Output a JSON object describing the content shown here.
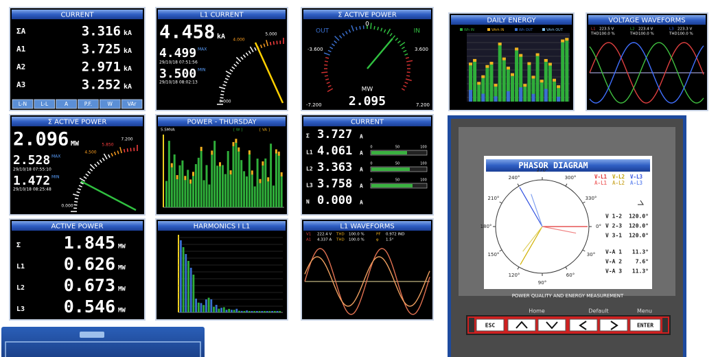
{
  "current": {
    "title": "CURRENT",
    "rows": [
      {
        "label": "ΣA",
        "value": "3.316",
        "unit": "kA"
      },
      {
        "label": "A1",
        "value": "3.725",
        "unit": "kA"
      },
      {
        "label": "A2",
        "value": "2.971",
        "unit": "kA"
      },
      {
        "label": "A3",
        "value": "3.252",
        "unit": "kA"
      }
    ],
    "tabs": [
      "L-N",
      "L-L",
      "A",
      "P.F.",
      "W",
      "VAr"
    ]
  },
  "l1_current": {
    "title": "L1 CURRENT",
    "value": "4.458",
    "unit": "kA",
    "max": {
      "value": "4.499",
      "label": "MAX",
      "time": "29/10/18 07:51:56"
    },
    "min": {
      "value": "3.500",
      "label": "MIN",
      "time": "29/10/18 08:02:13"
    },
    "scale": [
      "5.000",
      "4.000",
      "0.000"
    ]
  },
  "power_gauge": {
    "title": "Σ ACTIVE POWER",
    "out": "OUT",
    "in": "IN",
    "zero": "0",
    "left": "-3.600",
    "right": "3.600",
    "unit": "MW",
    "value": "2.095",
    "min": "-7.200",
    "max": "7.200"
  },
  "daily_energy": {
    "title": "DAILY ENERGY",
    "legend": [
      "Wh IN",
      "VArh IN",
      "Wh OUT",
      "VArh OUT"
    ]
  },
  "voltage_waveforms": {
    "title": "VOLTAGE WAVEFORMS",
    "phases": [
      {
        "name": "L1",
        "voltage": "223.5 V",
        "thd_label": "THD",
        "thd": "100.0 %"
      },
      {
        "name": "L2",
        "voltage": "223.4 V",
        "thd_label": "THD",
        "thd": "100.0 %"
      },
      {
        "name": "L3",
        "voltage": "223.3 V",
        "thd_label": "THD",
        "thd": "100.0 %"
      }
    ]
  },
  "power_max": {
    "title": "Σ ACTIVE POWER",
    "value": "2.096",
    "unit": "MW",
    "max": {
      "value": "2.528",
      "label": "MAX",
      "time": "29/10/18 07:55:10"
    },
    "min": {
      "value": "1.472",
      "label": "MIN",
      "time": "29/10/18 08:25:48"
    },
    "scale": [
      "7.200",
      "5.850",
      "4.500",
      "0.000"
    ]
  },
  "power_thursday": {
    "title": "POWER - THURSDAY",
    "axis": "5.5MVA",
    "legend": [
      "[ W ]",
      "[ VA ]"
    ]
  },
  "current_bars": {
    "title": "CURRENT",
    "rows": [
      {
        "label": "Σ",
        "value": "3.727",
        "unit": "A"
      },
      {
        "label": "L1",
        "value": "4.061",
        "unit": "A"
      },
      {
        "label": "L2",
        "value": "3.363",
        "unit": "A"
      },
      {
        "label": "L3",
        "value": "3.758",
        "unit": "A"
      },
      {
        "label": "N",
        "value": "0.000",
        "unit": "A"
      }
    ],
    "scale": [
      "0",
      "50",
      "100"
    ]
  },
  "active_power": {
    "title": "ACTIVE POWER",
    "rows": [
      {
        "label": "Σ",
        "value": "1.845",
        "unit": "MW"
      },
      {
        "label": "L1",
        "value": "0.626",
        "unit": "MW"
      },
      {
        "label": "L2",
        "value": "0.673",
        "unit": "MW"
      },
      {
        "label": "L3",
        "value": "0.546",
        "unit": "MW"
      }
    ]
  },
  "harmonics": {
    "title": "HARMONICS I L1"
  },
  "l1_waveforms": {
    "title": "L1 WAVEFORMS",
    "rows": [
      [
        "V1",
        "222.4 V",
        "THD",
        "100.0 %",
        "PF",
        "0.972 IND"
      ],
      [
        "A1",
        "4.337 A",
        "THD",
        "100.0 %",
        "φ",
        "1.5°"
      ]
    ]
  },
  "meter": {
    "title": "PHASOR DIAGRAM",
    "legend": [
      "V-L1",
      "V-L2",
      "V-L3",
      "A-L1",
      "A-L2",
      "A-L3"
    ],
    "angles": [
      "0°",
      "30°",
      "60°",
      "90°",
      "120°",
      "150°",
      "180°",
      "210°",
      "240°",
      "270°",
      "300°",
      "330°"
    ],
    "table": [
      [
        "V 1-2",
        "120.0°"
      ],
      [
        "V 2-3",
        "120.0°"
      ],
      [
        "V 3-1",
        "120.0°"
      ],
      [
        "V-A 1",
        "11.3°"
      ],
      [
        "V-A 2",
        "7.6°"
      ],
      [
        "V-A 3",
        "11.3°"
      ]
    ],
    "caption": "POWER QUALITY AND ENERGY MEASUREMENT",
    "keys": {
      "home": "Home",
      "default": "Default",
      "menu": "Menu",
      "esc": "ESC",
      "enter": "ENTER"
    }
  }
}
